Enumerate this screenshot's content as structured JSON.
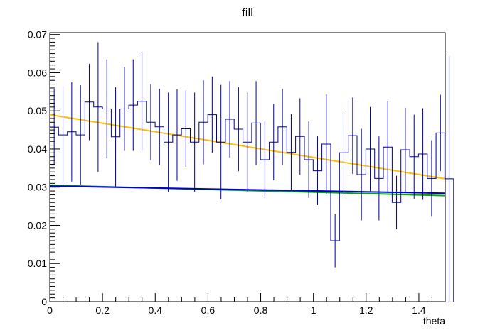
{
  "chart_data": {
    "type": "line",
    "title": "fill",
    "xlabel": "theta",
    "ylabel": "",
    "xlim": [
      0,
      1.5
    ],
    "ylim": [
      0,
      0.0705
    ],
    "grid": false,
    "legend": "none",
    "x_ticks": [
      "0",
      "0.2",
      "0.4",
      "0.6",
      "0.8",
      "1",
      "1.2",
      "1.4"
    ],
    "y_ticks": [
      "0",
      "0.01",
      "0.02",
      "0.03",
      "0.04",
      "0.05",
      "0.06",
      "0.07"
    ],
    "histogram": {
      "name": "fill",
      "color": "#000099",
      "bin_width": 0.0333,
      "bin_start": 0,
      "values": [
        0.0457,
        0.0437,
        0.0445,
        0.0437,
        0.0523,
        0.051,
        0.0505,
        0.0432,
        0.0505,
        0.0515,
        0.0525,
        0.047,
        0.0458,
        0.0418,
        0.0437,
        0.0453,
        0.0418,
        0.047,
        0.049,
        0.0418,
        0.0478,
        0.0452,
        0.0418,
        0.0468,
        0.0372,
        0.0418,
        0.0458,
        0.0391,
        0.0433,
        0.0372,
        0.0343,
        0.0413,
        0.016,
        0.039,
        0.0435,
        0.0333,
        0.04,
        0.0323,
        0.0405,
        0.026,
        0.0398,
        0.038,
        0.0387,
        0.0323,
        0.0442,
        0.0322
      ],
      "errors": [
        0.01,
        0.013,
        0.013,
        0.013,
        0.01,
        0.017,
        0.013,
        0.013,
        0.011,
        0.012,
        0.013,
        0.01,
        0.01,
        0.013,
        0.012,
        0.01,
        0.013,
        0.011,
        0.01,
        0.015,
        0.01,
        0.011,
        0.013,
        0.011,
        0.01,
        0.01,
        0.01,
        0.01,
        0.01,
        0.01,
        0.009,
        0.013,
        0.007,
        0.011,
        0.01,
        0.012,
        0.011,
        0.011,
        0.012,
        0.007,
        0.011,
        0.011,
        0.012,
        0.01,
        0.01,
        0.0322
      ]
    },
    "series": [
      {
        "color": "#ffc000",
        "x": [
          0,
          1.5
        ],
        "y": [
          0.049,
          0.0322
        ]
      },
      {
        "color": "#00aa00",
        "x": [
          0,
          1.5
        ],
        "y": [
          0.0305,
          0.0278
        ]
      },
      {
        "color": "#0000dd",
        "x": [
          0,
          1.5
        ],
        "y": [
          0.0303,
          0.0284
        ]
      }
    ]
  }
}
